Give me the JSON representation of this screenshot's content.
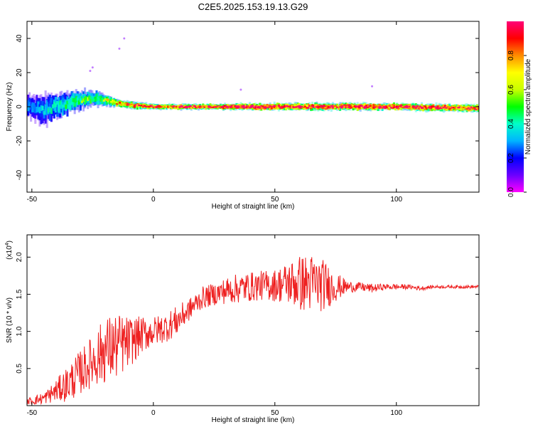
{
  "title": "C2E5.2025.153.19.13.G29",
  "chart_data": [
    {
      "type": "heatmap",
      "xlabel": "Height of straight line (km)",
      "ylabel": "Frequency (Hz)",
      "xlim": [
        -52,
        134
      ],
      "ylim": [
        -50,
        50
      ],
      "x_ticks": [
        "-50",
        "0",
        "50",
        "100"
      ],
      "x_tick_values": [
        -50,
        0,
        50,
        100
      ],
      "y_ticks": [
        "-40",
        "-20",
        "0",
        "20",
        "40"
      ],
      "y_tick_values": [
        -40,
        -20,
        0,
        20,
        40
      ],
      "colorbar": {
        "label": "Normalized spectral amplitude",
        "range": [
          0,
          1
        ],
        "ticks": [
          "0.0",
          "0.2",
          "0.4",
          "0.6",
          "0.8"
        ],
        "tick_values": [
          0.0,
          0.2,
          0.4,
          0.6,
          0.8
        ],
        "colormap": [
          "#ff00ff",
          "#6a00ff",
          "#0000ff",
          "#00b4ff",
          "#00ffc8",
          "#00ff00",
          "#c8ff00",
          "#ffff00",
          "#ff8c00",
          "#ff0000",
          "#ff0078"
        ]
      },
      "ridge": {
        "x": [
          -52,
          -45,
          -40,
          -35,
          -30,
          -25,
          -20,
          -15,
          -10,
          0,
          10,
          20,
          50,
          100,
          134
        ],
        "center_hz": [
          0,
          -2,
          1,
          2,
          4,
          5,
          4,
          2,
          1,
          0,
          0,
          0,
          0,
          0,
          -1
        ],
        "spread_hz": [
          6,
          8,
          7,
          6,
          5,
          4,
          3,
          2,
          2,
          1.5,
          1.5,
          1.5,
          2,
          2,
          2
        ],
        "peak_amplitude": [
          0.3,
          0.35,
          0.4,
          0.45,
          0.5,
          0.55,
          0.6,
          0.75,
          0.9,
          0.9,
          0.95,
          1.0,
          1.0,
          1.0,
          0.95
        ]
      },
      "outliers": [
        {
          "x": -26,
          "y": 21
        },
        {
          "x": -25,
          "y": 23
        },
        {
          "x": -14,
          "y": 34
        },
        {
          "x": -12,
          "y": 40
        },
        {
          "x": 36,
          "y": 10
        },
        {
          "x": 90,
          "y": 12
        }
      ]
    },
    {
      "type": "line",
      "xlabel": "Height of straight line (km)",
      "ylabel": "SNR (10 * v/v)",
      "multiplier_label": "(x10",
      "multiplier_exp": "4",
      "xlim": [
        -52,
        134
      ],
      "ylim": [
        0,
        2.3
      ],
      "x_ticks": [
        "-50",
        "0",
        "50",
        "100"
      ],
      "x_tick_values": [
        -50,
        0,
        50,
        100
      ],
      "y_ticks": [
        "0.5",
        "1.0",
        "1.5",
        "2.0"
      ],
      "y_tick_values": [
        0.5,
        1.0,
        1.5,
        2.0
      ],
      "color": "#ee2020",
      "series": [
        {
          "x": [
            -52,
            -45,
            -40,
            -35,
            -30,
            -25,
            -20,
            -15,
            -10,
            -5,
            0,
            5,
            10,
            15,
            20,
            25,
            30,
            35,
            40,
            45,
            50,
            55,
            60,
            65,
            70,
            75,
            80,
            85,
            90,
            95,
            100,
            105,
            110,
            115,
            120,
            125,
            130,
            134
          ],
          "values": [
            0.05,
            0.1,
            0.2,
            0.3,
            0.45,
            0.6,
            0.75,
            0.8,
            0.85,
            0.95,
            1.0,
            1.05,
            1.15,
            1.3,
            1.45,
            1.5,
            1.55,
            1.58,
            1.6,
            1.62,
            1.62,
            1.65,
            1.65,
            1.65,
            1.62,
            1.6,
            1.6,
            1.6,
            1.58,
            1.6,
            1.6,
            1.6,
            1.58,
            1.6,
            1.6,
            1.6,
            1.6,
            1.6
          ],
          "noise": [
            0.05,
            0.08,
            0.15,
            0.25,
            0.3,
            0.35,
            0.45,
            0.45,
            0.35,
            0.25,
            0.2,
            0.2,
            0.2,
            0.15,
            0.15,
            0.15,
            0.18,
            0.2,
            0.2,
            0.2,
            0.22,
            0.28,
            0.38,
            0.4,
            0.35,
            0.2,
            0.08,
            0.06,
            0.06,
            0.04,
            0.04,
            0.03,
            0.03,
            0.02,
            0.02,
            0.02,
            0.02,
            0.02
          ]
        }
      ]
    }
  ]
}
